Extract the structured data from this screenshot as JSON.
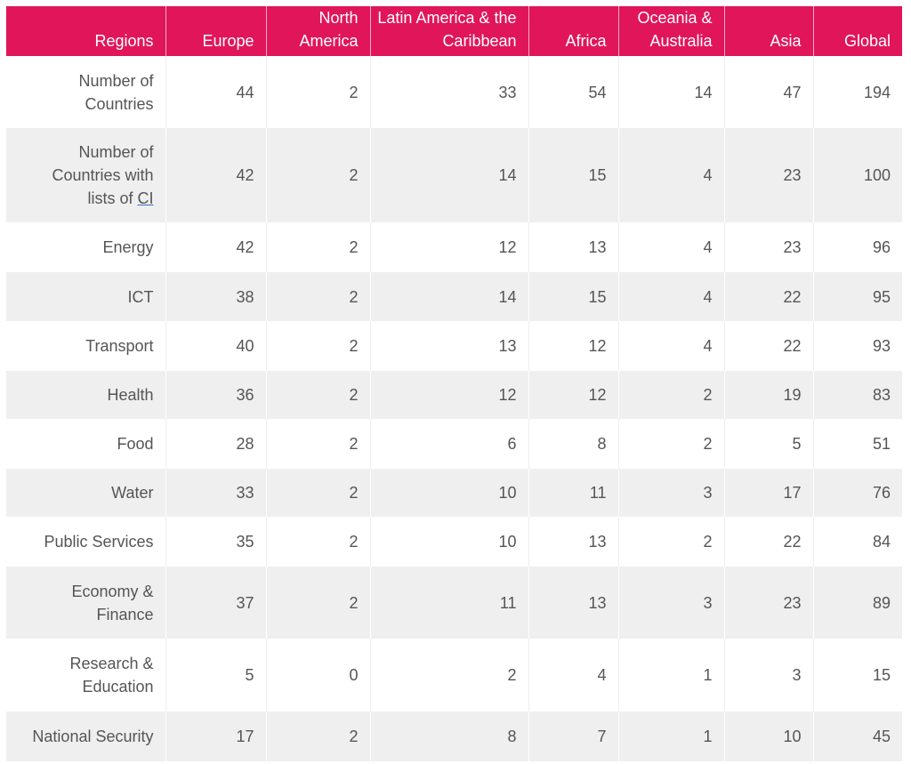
{
  "table": {
    "headers": [
      "Regions",
      "Europe",
      "North America",
      "Latin America & the Caribbean",
      "Africa",
      "Oceania & Australia",
      "Asia",
      "Global"
    ],
    "rows": [
      {
        "label": "Number of Countries",
        "values": [
          "44",
          "2",
          "33",
          "54",
          "14",
          "47",
          "194"
        ]
      },
      {
        "label_pre": "Number of Countries with lists of ",
        "label_abbr": "CI",
        "values": [
          "42",
          "2",
          "14",
          "15",
          "4",
          "23",
          "100"
        ]
      },
      {
        "label": "Energy",
        "values": [
          "42",
          "2",
          "12",
          "13",
          "4",
          "23",
          "96"
        ]
      },
      {
        "label": "ICT",
        "values": [
          "38",
          "2",
          "14",
          "15",
          "4",
          "22",
          "95"
        ]
      },
      {
        "label": "Transport",
        "values": [
          "40",
          "2",
          "13",
          "12",
          "4",
          "22",
          "93"
        ]
      },
      {
        "label": "Health",
        "values": [
          "36",
          "2",
          "12",
          "12",
          "2",
          "19",
          "83"
        ]
      },
      {
        "label": "Food",
        "values": [
          "28",
          "2",
          "6",
          "8",
          "2",
          "5",
          "51"
        ]
      },
      {
        "label": "Water",
        "values": [
          "33",
          "2",
          "10",
          "11",
          "3",
          "17",
          "76"
        ]
      },
      {
        "label": "Public Services",
        "values": [
          "35",
          "2",
          "10",
          "13",
          "2",
          "22",
          "84"
        ]
      },
      {
        "label": "Economy & Finance",
        "values": [
          "37",
          "2",
          "11",
          "13",
          "3",
          "23",
          "89"
        ]
      },
      {
        "label": "Research & Education",
        "values": [
          "5",
          "0",
          "2",
          "4",
          "1",
          "3",
          "15"
        ]
      },
      {
        "label": "National Security",
        "values": [
          "17",
          "2",
          "8",
          "7",
          "1",
          "10",
          "45"
        ]
      }
    ]
  },
  "colors": {
    "header_bg": "#e0155a",
    "header_text": "#ffffff",
    "stripe": "#efefef",
    "text": "#555555"
  }
}
